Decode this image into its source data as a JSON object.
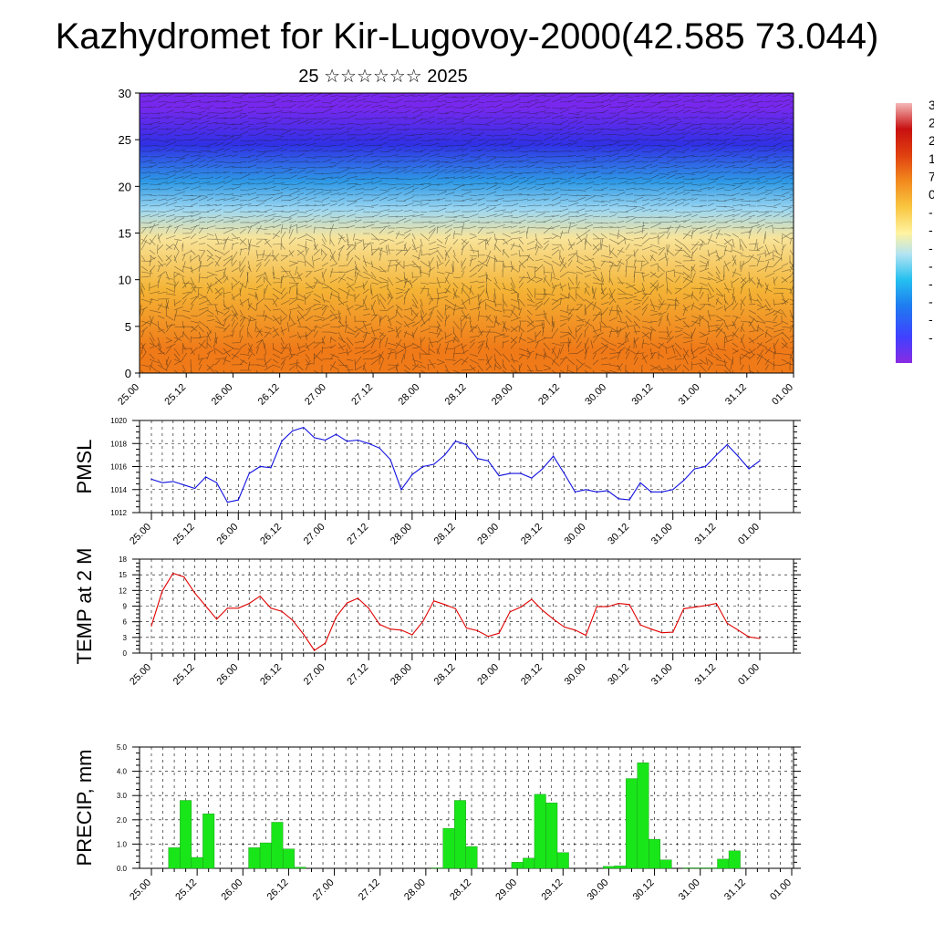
{
  "title": "Kazhydromet for Kir-Lugovoy-2000(42.585 73.044)",
  "subtitle": "25 ☆☆☆☆☆☆ 2025",
  "colors": {
    "pmsl_line": "#1010e0",
    "temp_line": "#e00000",
    "precip_bar": "#19e619",
    "frame": "#000000"
  },
  "time_ticks": [
    "25.00",
    "25.12",
    "26.00",
    "26.12",
    "27.00",
    "27.12",
    "28.00",
    "28.12",
    "29.00",
    "29.12",
    "30.00",
    "30.12",
    "31.00",
    "31.12",
    "01.00"
  ],
  "chart_data": [
    {
      "type": "heatmap",
      "name": "cross-section",
      "x": [
        "25.00",
        "25.12",
        "26.00",
        "26.12",
        "27.00",
        "27.12",
        "28.00",
        "28.12",
        "29.00",
        "29.12",
        "30.00",
        "30.12",
        "31.00",
        "31.12",
        "01.00"
      ],
      "ylim": [
        0,
        30
      ],
      "yticks": [
        0,
        5,
        10,
        15,
        20,
        25,
        30
      ],
      "colorbar_labels": [
        "3",
        "2",
        "2",
        "1",
        "7",
        "0",
        "-",
        "-",
        "-",
        "-",
        "-",
        "-",
        "-",
        "-"
      ],
      "bands": [
        {
          "y": [
            0,
            5
          ],
          "color": "#f07a18"
        },
        {
          "y": [
            5,
            13
          ],
          "color": "#f4b436"
        },
        {
          "y": [
            13,
            16
          ],
          "color": "#f8e49a"
        },
        {
          "y": [
            16,
            19
          ],
          "color": "#9ed8f2"
        },
        {
          "y": [
            19,
            22
          ],
          "color": "#2e9ae6"
        },
        {
          "y": [
            22,
            27
          ],
          "color": "#3030e6"
        },
        {
          "y": [
            27,
            30
          ],
          "color": "#7828ee"
        }
      ]
    },
    {
      "type": "line",
      "name": "PMSL",
      "ylabel": "PMSL",
      "x": [
        "25.00",
        "25.03",
        "25.06",
        "25.09",
        "25.12",
        "25.15",
        "25.18",
        "25.21",
        "26.00",
        "26.03",
        "26.06",
        "26.09",
        "26.12",
        "26.15",
        "26.18",
        "26.21",
        "27.00",
        "27.03",
        "27.06",
        "27.09",
        "27.12",
        "27.15",
        "27.18",
        "27.21",
        "28.00",
        "28.03",
        "28.06",
        "28.09",
        "28.12",
        "28.15",
        "28.18",
        "28.21",
        "29.00",
        "29.03",
        "29.06",
        "29.09",
        "29.12",
        "29.15",
        "29.18",
        "29.21",
        "30.00",
        "30.03",
        "30.06",
        "30.09",
        "30.12",
        "30.15",
        "30.18",
        "30.21",
        "31.00",
        "31.03",
        "31.06",
        "31.09",
        "31.12",
        "31.15",
        "31.18",
        "31.21",
        "01.00"
      ],
      "values": [
        1014.9,
        1014.6,
        1014.7,
        1014.4,
        1014.1,
        1015.1,
        1014.6,
        1012.9,
        1013.1,
        1015.4,
        1016.0,
        1015.9,
        1018.2,
        1019.1,
        1019.4,
        1018.5,
        1018.3,
        1018.8,
        1018.2,
        1018.3,
        1018.0,
        1017.6,
        1016.6,
        1014.0,
        1015.3,
        1016.0,
        1016.2,
        1017.0,
        1018.2,
        1017.9,
        1016.7,
        1016.5,
        1015.2,
        1015.4,
        1015.4,
        1015.0,
        1015.8,
        1016.9,
        1015.4,
        1013.8,
        1014.0,
        1013.8,
        1013.9,
        1013.2,
        1013.1,
        1014.6,
        1013.8,
        1013.8,
        1014.0,
        1014.8,
        1015.8,
        1016.0,
        1017.0,
        1017.9,
        1016.9,
        1015.8,
        1016.5
      ],
      "ylim": [
        1012,
        1020
      ],
      "yticks": [
        1012,
        1014,
        1016,
        1018,
        1020
      ]
    },
    {
      "type": "line",
      "name": "TEMP at 2 M",
      "ylabel": "TEMP at 2 M",
      "x": [
        "25.00",
        "25.03",
        "25.06",
        "25.09",
        "25.12",
        "25.15",
        "25.18",
        "25.21",
        "26.00",
        "26.03",
        "26.06",
        "26.09",
        "26.12",
        "26.15",
        "26.18",
        "26.21",
        "27.00",
        "27.03",
        "27.06",
        "27.09",
        "27.12",
        "27.15",
        "27.18",
        "27.21",
        "28.00",
        "28.03",
        "28.06",
        "28.09",
        "28.12",
        "28.15",
        "28.18",
        "28.21",
        "29.00",
        "29.03",
        "29.06",
        "29.09",
        "29.12",
        "29.15",
        "29.18",
        "29.21",
        "30.00",
        "30.03",
        "30.06",
        "30.09",
        "30.12",
        "30.15",
        "30.18",
        "30.21",
        "31.00",
        "31.03",
        "31.06",
        "31.09",
        "31.12",
        "31.15",
        "31.18",
        "31.21",
        "01.00"
      ],
      "values": [
        5.2,
        11.9,
        15.3,
        14.6,
        11.5,
        9.0,
        6.5,
        8.6,
        8.6,
        9.5,
        10.9,
        8.6,
        8.0,
        6.3,
        3.6,
        0.5,
        1.9,
        6.9,
        9.6,
        10.5,
        8.6,
        5.5,
        4.6,
        4.4,
        3.5,
        6.1,
        10.0,
        9.3,
        8.5,
        4.8,
        4.3,
        3.2,
        3.8,
        7.9,
        8.8,
        10.3,
        8.2,
        6.5,
        5.0,
        4.4,
        3.4,
        8.9,
        8.9,
        9.5,
        9.3,
        5.4,
        4.6,
        3.9,
        4.0,
        8.5,
        8.8,
        9.1,
        9.5,
        5.7,
        4.4,
        3.1,
        2.8
      ],
      "ylim": [
        0,
        18
      ],
      "yticks": [
        0,
        3,
        6,
        9,
        12,
        15,
        18
      ]
    },
    {
      "type": "bar",
      "name": "PRECIP, mm",
      "ylabel": "PRECIP, mm",
      "x": [
        "25.00",
        "25.03",
        "25.06",
        "25.09",
        "25.12",
        "25.15",
        "25.18",
        "25.21",
        "26.00",
        "26.03",
        "26.06",
        "26.09",
        "26.12",
        "26.15",
        "26.18",
        "26.21",
        "27.00",
        "27.03",
        "27.06",
        "27.09",
        "27.12",
        "27.15",
        "27.18",
        "27.21",
        "28.00",
        "28.03",
        "28.06",
        "28.09",
        "28.12",
        "28.15",
        "28.18",
        "28.21",
        "29.00",
        "29.03",
        "29.06",
        "29.09",
        "29.12",
        "29.15",
        "29.18",
        "29.21",
        "30.00",
        "30.03",
        "30.06",
        "30.09",
        "30.12",
        "30.15",
        "30.18",
        "30.21",
        "31.00",
        "31.03",
        "31.06",
        "31.09",
        "31.12",
        "31.15",
        "31.18",
        "31.21",
        "01.00"
      ],
      "values": [
        0,
        0,
        0.85,
        2.8,
        0.45,
        2.25,
        0,
        0,
        0,
        0.85,
        1.05,
        1.9,
        0.8,
        0.05,
        0,
        0,
        0,
        0,
        0,
        0,
        0,
        0,
        0,
        0,
        0,
        0.02,
        1.65,
        2.8,
        0.9,
        0,
        0,
        0,
        0.25,
        0.42,
        3.05,
        2.7,
        0.65,
        0,
        0,
        0,
        0.08,
        0.1,
        3.7,
        4.35,
        1.2,
        0.35,
        0,
        0.02,
        0.02,
        0.02,
        0.38,
        0.72,
        0,
        0,
        0,
        0,
        0
      ],
      "ylim": [
        0,
        5
      ],
      "yticks": [
        "0.0",
        "1.0",
        "2.0",
        "3.0",
        "4.0",
        "5.0"
      ]
    }
  ]
}
